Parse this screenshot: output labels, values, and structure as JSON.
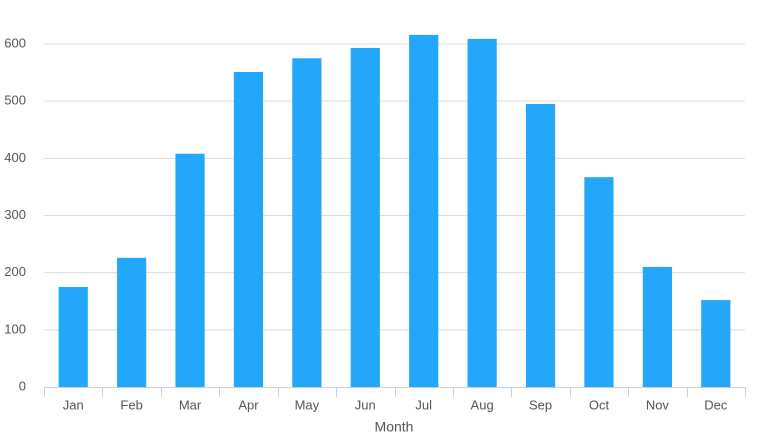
{
  "chart_data": {
    "type": "bar",
    "x_label": "Month",
    "categories": [
      "Jan",
      "Feb",
      "Mar",
      "Apr",
      "May",
      "Jun",
      "Jul",
      "Aug",
      "Sep",
      "Oct",
      "Nov",
      "Dec"
    ],
    "values": [
      175,
      226,
      408,
      551,
      575,
      593,
      616,
      609,
      495,
      367,
      210,
      152
    ],
    "color": "#23a7fa",
    "ylim": [
      0,
      650
    ],
    "yticks": [
      0,
      100,
      200,
      300,
      400,
      500,
      600
    ],
    "grid": true
  }
}
